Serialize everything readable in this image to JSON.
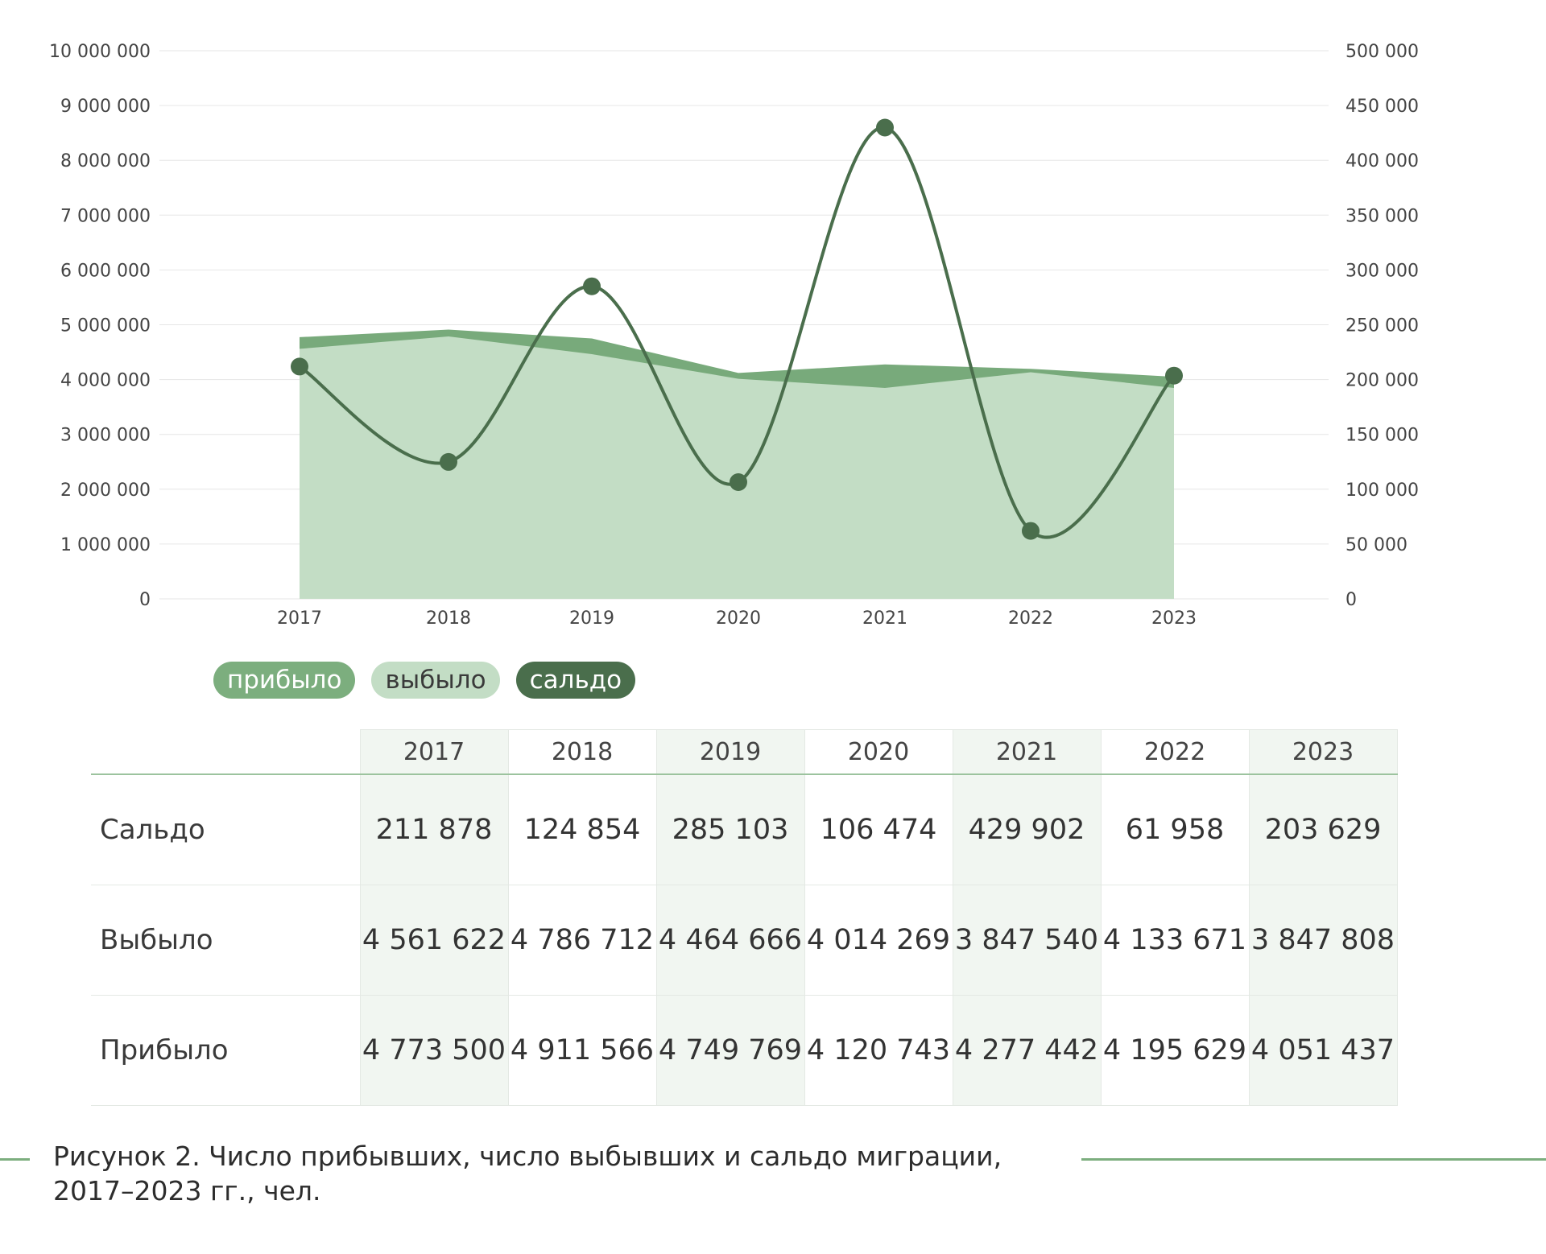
{
  "chart_data": {
    "type": "area",
    "categories": [
      "2017",
      "2018",
      "2019",
      "2020",
      "2021",
      "2022",
      "2023"
    ],
    "series": [
      {
        "name": "прибыло",
        "axis": "left",
        "style": "area",
        "values": [
          4773500,
          4911566,
          4749769,
          4120743,
          4277442,
          4195629,
          4051437
        ]
      },
      {
        "name": "выбыло",
        "axis": "left",
        "style": "area",
        "values": [
          4561622,
          4786712,
          4464666,
          4014269,
          3847540,
          4133671,
          3847808
        ]
      },
      {
        "name": "сальдо",
        "axis": "right",
        "style": "smooth-line-markers",
        "values": [
          211878,
          124854,
          285103,
          106474,
          429902,
          61958,
          203629
        ]
      }
    ],
    "y_left": {
      "range": [
        0,
        10000000
      ],
      "ticks": [
        "0",
        "1 000 000",
        "2 000 000",
        "3 000 000",
        "4 000 000",
        "5 000 000",
        "6 000 000",
        "7 000 000",
        "8 000 000",
        "9 000 000",
        "10 000 000"
      ]
    },
    "y_right": {
      "range": [
        0,
        500000
      ],
      "ticks": [
        "0",
        "50 000",
        "100 000",
        "150 000",
        "200 000",
        "250 000",
        "300 000",
        "350 000",
        "400 000",
        "450 000",
        "500 000"
      ]
    },
    "grid": true,
    "legend_position": "bottom-left"
  },
  "colors": {
    "pribylo": "#78aa7b",
    "vybylo": "#c3ddc5",
    "saldo": "#4a6e4c",
    "grid": "#e6e6e6"
  },
  "legend": [
    {
      "label": "прибыло",
      "bg": "#7cae7e",
      "fg": "#ffffff"
    },
    {
      "label": "выбыло",
      "bg": "#c3ddc5",
      "fg": "#3a3a3a"
    },
    {
      "label": "сальдо",
      "bg": "#4a6e4c",
      "fg": "#ffffff"
    }
  ],
  "table": {
    "years": [
      "2017",
      "2018",
      "2019",
      "2020",
      "2021",
      "2022",
      "2023"
    ],
    "rows": [
      {
        "label": "Сальдо",
        "values": [
          "211 878",
          "124 854",
          "285 103",
          "106 474",
          "429 902",
          "61 958",
          "203 629"
        ]
      },
      {
        "label": "Выбыло",
        "values": [
          "4 561 622",
          "4 786 712",
          "4 464 666",
          "4 014 269",
          "3 847 540",
          "4 133 671",
          "3 847 808"
        ]
      },
      {
        "label": "Прибыло",
        "values": [
          "4 773 500",
          "4 911 566",
          "4 749 769",
          "4 120 743",
          "4 277 442",
          "4 195 629",
          "4 051 437"
        ]
      }
    ]
  },
  "caption": {
    "line1": "Рисунок 2. Число прибывших, число выбывших и сальдо миграции,",
    "line2": "2017–2023 гг., чел."
  }
}
